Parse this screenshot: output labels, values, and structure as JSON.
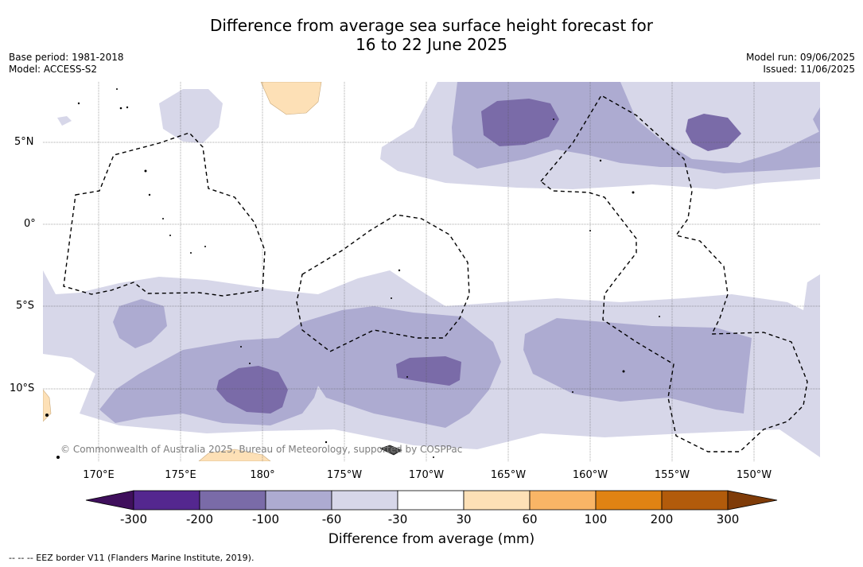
{
  "title": {
    "line1": "Difference from average sea surface height forecast for",
    "line2": "16 to 22 June 2025"
  },
  "meta": {
    "base_period": "Base period: 1981-2018",
    "model": "Model: ACCESS-S2",
    "model_run": "Model run: 09/06/2025",
    "issued": "Issued: 11/06/2025"
  },
  "map": {
    "lat_labels": [
      "5°N",
      "0°",
      "5°S",
      "10°S"
    ],
    "lon_labels": [
      "170°E",
      "175°E",
      "180°",
      "175°W",
      "170°W",
      "165°W",
      "160°W",
      "155°W",
      "150°W"
    ],
    "credit": "© Commonwealth of Australia 2025, Bureau of Meteorology, supported by COSPPac"
  },
  "colorbar": {
    "ticks": [
      "-300",
      "-200",
      "-100",
      "-60",
      "-30",
      "30",
      "60",
      "100",
      "200",
      "300"
    ],
    "colors": [
      "#3f0f5c",
      "#54278f",
      "#7a6ba8",
      "#adabd1",
      "#d7d7e9",
      "#ffffff",
      "#fde0b6",
      "#f9b566",
      "#e08313",
      "#b25b0b",
      "#7f3b08"
    ],
    "title": "Difference from average (mm)"
  },
  "legend": {
    "eez": "-- -- -- EEZ border V11 (Flanders Marine Institute, 2019)."
  }
}
